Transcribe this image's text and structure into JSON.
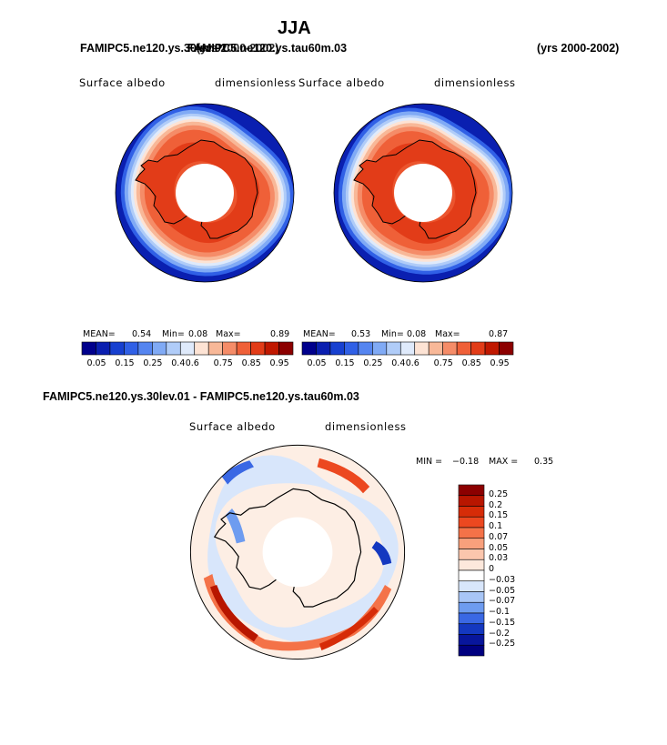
{
  "page": {
    "season_title": "JJA",
    "header_left": "FAMIPC5.ne120.ys.30lev.01",
    "header_overlap": "FAMIPC5.ne120.ys.tau60m.03",
    "header_years_overlap": "(yrs 2000-2002)",
    "header_right_years": "(yrs 2000-2002)",
    "diff_title": "FAMIPC5.ne120.ys.30lev.01 - FAMIPC5.ne120.ys.tau60m.03"
  },
  "colors": {
    "levels": [
      "#00008c",
      "#0a1fb0",
      "#1740d0",
      "#3060e6",
      "#5585f0",
      "#80aaf5",
      "#b0ccf8",
      "#dfeafb",
      "#fde3d4",
      "#f8b898",
      "#f58c68",
      "#ef6038",
      "#e23c18",
      "#c01800",
      "#8c0000"
    ],
    "land_outline": "#000000"
  },
  "chart_data": [
    {
      "type": "heatmap",
      "projection": "south-polar-stereographic",
      "variable_label": "Surface albedo",
      "units_label": "dimensionless",
      "mean_label": "MEAN=",
      "mean": "0.54",
      "min_label": "Min=",
      "min": "0.08",
      "max_label": "Max=",
      "max": "0.89",
      "colorbar_ticks": [
        "0.05",
        "0.15",
        "0.25",
        "0.4",
        "0.6",
        "0.75",
        "0.85",
        "0.95"
      ],
      "colorbar_levels": 15
    },
    {
      "type": "heatmap",
      "projection": "south-polar-stereographic",
      "variable_label": "Surface albedo",
      "units_label": "dimensionless",
      "mean_label": "MEAN=",
      "mean": "0.53",
      "min_label": "Min=",
      "min": "0.08",
      "max_label": "Max=",
      "max": "0.87",
      "colorbar_ticks": [
        "0.05",
        "0.15",
        "0.25",
        "0.4",
        "0.6",
        "0.75",
        "0.85",
        "0.95"
      ],
      "colorbar_levels": 15
    },
    {
      "type": "heatmap",
      "projection": "south-polar-stereographic",
      "variable_label": "Surface albedo",
      "units_label": "dimensionless",
      "min_label": "MIN =",
      "min": "−0.18",
      "max_label": "MAX =",
      "max": "0.35",
      "colorbar_ticks": [
        "0.25",
        "0.2",
        "0.15",
        "0.1",
        "0.07",
        "0.05",
        "0.03",
        "0",
        "−0.03",
        "−0.05",
        "−0.07",
        "−0.1",
        "−0.15",
        "−0.2",
        "−0.25"
      ],
      "colorbar_colors": [
        "#8c0000",
        "#b81600",
        "#d62c08",
        "#ec4820",
        "#f47248",
        "#f8a07c",
        "#fbc6ad",
        "#fde8dc",
        "#ffffff",
        "#d8e6fb",
        "#a8c6f6",
        "#6e9cf0",
        "#3a68e4",
        "#1438c0",
        "#08169c",
        "#000080"
      ]
    }
  ]
}
